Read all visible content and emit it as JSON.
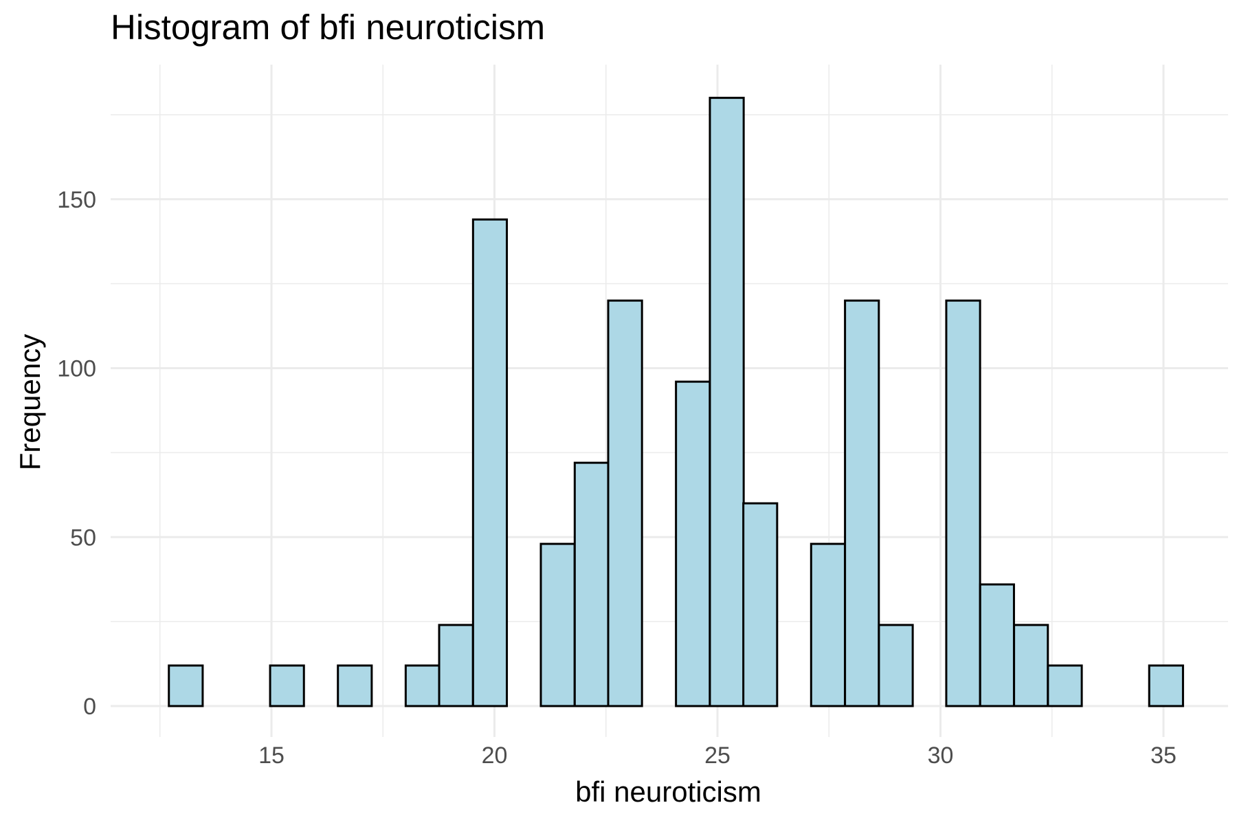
{
  "chart_data": {
    "type": "bar",
    "title": "Histogram of bfi neuroticism",
    "xlabel": "bfi neuroticism",
    "ylabel": "Frequency",
    "x_ticks": [
      15,
      20,
      25,
      30,
      35
    ],
    "y_ticks": [
      0,
      50,
      100,
      150
    ],
    "xlim": [
      12.2,
      36.4
    ],
    "ylim": [
      -8,
      181
    ],
    "grid": true,
    "bin_width": 0.758,
    "bins": [
      {
        "x": 12.7,
        "count": 12
      },
      {
        "x": 13.46,
        "count": 0
      },
      {
        "x": 14.22,
        "count": 0
      },
      {
        "x": 14.97,
        "count": 12
      },
      {
        "x": 15.73,
        "count": 0
      },
      {
        "x": 16.49,
        "count": 12
      },
      {
        "x": 17.25,
        "count": 0
      },
      {
        "x": 18.01,
        "count": 12
      },
      {
        "x": 18.76,
        "count": 24
      },
      {
        "x": 19.52,
        "count": 144
      },
      {
        "x": 20.28,
        "count": 0
      },
      {
        "x": 21.04,
        "count": 48
      },
      {
        "x": 21.8,
        "count": 72
      },
      {
        "x": 22.55,
        "count": 120
      },
      {
        "x": 23.31,
        "count": 0
      },
      {
        "x": 24.07,
        "count": 96
      },
      {
        "x": 24.83,
        "count": 180
      },
      {
        "x": 25.58,
        "count": 60
      },
      {
        "x": 26.34,
        "count": 0
      },
      {
        "x": 27.1,
        "count": 48
      },
      {
        "x": 27.86,
        "count": 120
      },
      {
        "x": 28.62,
        "count": 24
      },
      {
        "x": 29.37,
        "count": 0
      },
      {
        "x": 30.13,
        "count": 120
      },
      {
        "x": 30.89,
        "count": 36
      },
      {
        "x": 31.65,
        "count": 24
      },
      {
        "x": 32.41,
        "count": 12
      },
      {
        "x": 33.16,
        "count": 0
      },
      {
        "x": 33.92,
        "count": 0
      },
      {
        "x": 34.68,
        "count": 12
      }
    ],
    "colors": {
      "fill": "#add8e6",
      "stroke": "#000000",
      "grid": "#ebebeb"
    }
  }
}
